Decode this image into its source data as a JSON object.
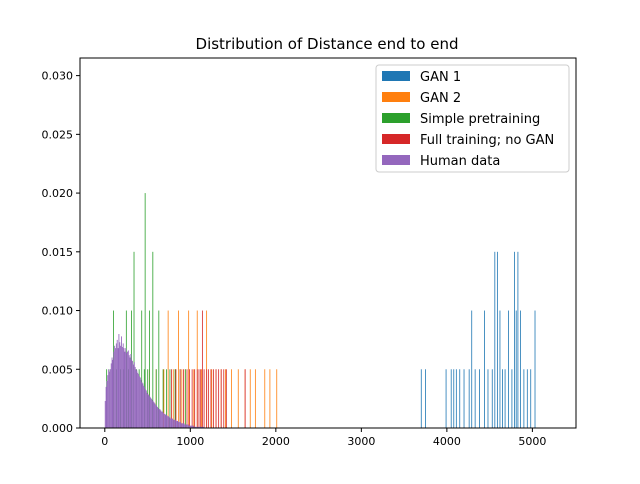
{
  "chart_data": {
    "type": "histogram",
    "title": "Distribution of Distance end to end",
    "xlabel": "",
    "ylabel": "",
    "xlim": [
      -290,
      5510
    ],
    "ylim": [
      0,
      0.0315
    ],
    "x_ticks": [
      0,
      1000,
      2000,
      3000,
      4000,
      5000
    ],
    "x_tick_labels": [
      "0",
      "1000",
      "2000",
      "3000",
      "4000",
      "5000"
    ],
    "y_ticks": [
      0,
      0.005,
      0.01,
      0.015,
      0.02,
      0.025,
      0.03
    ],
    "y_tick_labels": [
      "0.000",
      "0.005",
      "0.010",
      "0.015",
      "0.020",
      "0.025",
      "0.030"
    ],
    "grid": false,
    "legend_position": "top-right",
    "series": [
      {
        "name": "GAN 1",
        "color": "#1f77b4",
        "bin_width": 8,
        "bins": [
          [
            3700,
            0.005
          ],
          [
            3750,
            0.005
          ],
          [
            3990,
            0.005
          ],
          [
            4050,
            0.005
          ],
          [
            4080,
            0.005
          ],
          [
            4110,
            0.005
          ],
          [
            4150,
            0.005
          ],
          [
            4200,
            0.005
          ],
          [
            4260,
            0.005
          ],
          [
            4290,
            0.01
          ],
          [
            4330,
            0.005
          ],
          [
            4380,
            0.005
          ],
          [
            4440,
            0.01
          ],
          [
            4480,
            0.005
          ],
          [
            4530,
            0.005
          ],
          [
            4560,
            0.015
          ],
          [
            4590,
            0.015
          ],
          [
            4620,
            0.01
          ],
          [
            4650,
            0.005
          ],
          [
            4680,
            0.005
          ],
          [
            4720,
            0.01
          ],
          [
            4760,
            0.005
          ],
          [
            4790,
            0.015
          ],
          [
            4810,
            0.01
          ],
          [
            4830,
            0.015
          ],
          [
            4860,
            0.01
          ],
          [
            4900,
            0.005
          ],
          [
            4940,
            0.005
          ],
          [
            4980,
            0.005
          ],
          [
            5030,
            0.01
          ]
        ]
      },
      {
        "name": "GAN 2",
        "color": "#ff7f0e",
        "bin_width": 8,
        "bins": [
          [
            520,
            0.005
          ],
          [
            600,
            0.005
          ],
          [
            690,
            0.005
          ],
          [
            740,
            0.01
          ],
          [
            800,
            0.005
          ],
          [
            830,
            0.005
          ],
          [
            860,
            0.01
          ],
          [
            900,
            0.005
          ],
          [
            940,
            0.005
          ],
          [
            980,
            0.01
          ],
          [
            1040,
            0.005
          ],
          [
            1080,
            0.01
          ],
          [
            1130,
            0.005
          ],
          [
            1190,
            0.01
          ],
          [
            1250,
            0.005
          ],
          [
            1300,
            0.005
          ],
          [
            1360,
            0.005
          ],
          [
            1410,
            0.005
          ],
          [
            1480,
            0.005
          ],
          [
            1560,
            0.005
          ],
          [
            1640,
            0.005
          ],
          [
            1700,
            0.005
          ],
          [
            1760,
            0.005
          ],
          [
            1870,
            0.005
          ],
          [
            1930,
            0.005
          ],
          [
            2010,
            0.005
          ]
        ]
      },
      {
        "name": "Simple pretraining",
        "color": "#2ca02c",
        "bin_width": 6,
        "bins": [
          [
            20,
            0.005
          ],
          [
            60,
            0.005
          ],
          [
            100,
            0.01
          ],
          [
            140,
            0.005
          ],
          [
            180,
            0.005
          ],
          [
            220,
            0.005
          ],
          [
            250,
            0.01
          ],
          [
            280,
            0.005
          ],
          [
            310,
            0.01
          ],
          [
            340,
            0.015
          ],
          [
            370,
            0.005
          ],
          [
            400,
            0.005
          ],
          [
            430,
            0.01
          ],
          [
            460,
            0.005
          ],
          [
            470,
            0.02
          ],
          [
            500,
            0.005
          ],
          [
            520,
            0.01
          ],
          [
            560,
            0.015
          ],
          [
            600,
            0.005
          ],
          [
            630,
            0.01
          ],
          [
            680,
            0.005
          ],
          [
            720,
            0.005
          ],
          [
            760,
            0.005
          ],
          [
            820,
            0.005
          ],
          [
            880,
            0.005
          ],
          [
            940,
            0.005
          ]
        ]
      },
      {
        "name": "Full training; no GAN",
        "color": "#d62728",
        "bin_width": 7,
        "bins": [
          [
            780,
            0.005
          ],
          [
            830,
            0.005
          ],
          [
            880,
            0.005
          ],
          [
            920,
            0.005
          ],
          [
            960,
            0.005
          ],
          [
            990,
            0.005
          ],
          [
            1020,
            0.005
          ],
          [
            1050,
            0.005
          ],
          [
            1080,
            0.005
          ],
          [
            1100,
            0.005
          ],
          [
            1120,
            0.005
          ],
          [
            1140,
            0.01
          ],
          [
            1160,
            0.005
          ],
          [
            1190,
            0.005
          ],
          [
            1210,
            0.005
          ],
          [
            1240,
            0.005
          ],
          [
            1270,
            0.005
          ],
          [
            1300,
            0.005
          ],
          [
            1330,
            0.005
          ],
          [
            1360,
            0.005
          ],
          [
            1390,
            0.005
          ],
          [
            1420,
            0.005
          ],
          [
            1640,
            0.005
          ]
        ]
      },
      {
        "name": "Human data",
        "color": "#9467bd",
        "bin_width": 10,
        "bins": [
          [
            5,
            0.0023
          ],
          [
            15,
            0.0035
          ],
          [
            25,
            0.004
          ],
          [
            35,
            0.0045
          ],
          [
            45,
            0.005
          ],
          [
            55,
            0.0048
          ],
          [
            65,
            0.005
          ],
          [
            75,
            0.0055
          ],
          [
            85,
            0.006
          ],
          [
            95,
            0.0058
          ],
          [
            105,
            0.0065
          ],
          [
            115,
            0.007
          ],
          [
            125,
            0.0068
          ],
          [
            135,
            0.0072
          ],
          [
            145,
            0.0075
          ],
          [
            155,
            0.0068
          ],
          [
            165,
            0.008
          ],
          [
            175,
            0.0073
          ],
          [
            185,
            0.007
          ],
          [
            195,
            0.0078
          ],
          [
            205,
            0.0069
          ],
          [
            215,
            0.0072
          ],
          [
            225,
            0.0068
          ],
          [
            235,
            0.0065
          ],
          [
            245,
            0.0068
          ],
          [
            255,
            0.0064
          ],
          [
            265,
            0.0065
          ],
          [
            275,
            0.0066
          ],
          [
            285,
            0.0062
          ],
          [
            295,
            0.006
          ],
          [
            305,
            0.0063
          ],
          [
            315,
            0.0058
          ],
          [
            325,
            0.0057
          ],
          [
            335,
            0.0054
          ],
          [
            345,
            0.0056
          ],
          [
            355,
            0.0052
          ],
          [
            365,
            0.005
          ],
          [
            375,
            0.0049
          ],
          [
            385,
            0.0047
          ],
          [
            395,
            0.0046
          ],
          [
            405,
            0.0044
          ],
          [
            415,
            0.0043
          ],
          [
            425,
            0.0041
          ],
          [
            435,
            0.0039
          ],
          [
            445,
            0.0038
          ],
          [
            455,
            0.0036
          ],
          [
            465,
            0.0035
          ],
          [
            475,
            0.0033
          ],
          [
            485,
            0.0032
          ],
          [
            495,
            0.003
          ],
          [
            505,
            0.0029
          ],
          [
            515,
            0.0028
          ],
          [
            525,
            0.0027
          ],
          [
            535,
            0.0026
          ],
          [
            545,
            0.0025
          ],
          [
            555,
            0.0024
          ],
          [
            565,
            0.0023
          ],
          [
            575,
            0.0022
          ],
          [
            585,
            0.0021
          ],
          [
            595,
            0.002
          ],
          [
            605,
            0.0019
          ],
          [
            615,
            0.0018
          ],
          [
            625,
            0.0017
          ],
          [
            635,
            0.0016
          ],
          [
            645,
            0.0016
          ],
          [
            655,
            0.0015
          ],
          [
            665,
            0.0014
          ],
          [
            675,
            0.0014
          ],
          [
            685,
            0.0013
          ],
          [
            695,
            0.0012
          ],
          [
            705,
            0.0012
          ],
          [
            715,
            0.0011
          ],
          [
            725,
            0.0011
          ],
          [
            735,
            0.001
          ],
          [
            745,
            0.001
          ],
          [
            755,
            0.0009
          ],
          [
            765,
            0.0009
          ],
          [
            775,
            0.0008
          ],
          [
            785,
            0.0008
          ],
          [
            795,
            0.0008
          ],
          [
            805,
            0.0007
          ],
          [
            815,
            0.0007
          ],
          [
            825,
            0.0007
          ],
          [
            835,
            0.0006
          ],
          [
            845,
            0.0006
          ],
          [
            855,
            0.0006
          ],
          [
            865,
            0.0005
          ],
          [
            875,
            0.0005
          ],
          [
            885,
            0.0005
          ],
          [
            895,
            0.0004
          ],
          [
            905,
            0.0004
          ],
          [
            915,
            0.0004
          ],
          [
            925,
            0.0004
          ],
          [
            935,
            0.0003
          ],
          [
            945,
            0.0003
          ],
          [
            955,
            0.0003
          ],
          [
            965,
            0.0003
          ],
          [
            975,
            0.0003
          ],
          [
            985,
            0.0002
          ],
          [
            995,
            0.0002
          ],
          [
            1005,
            0.0002
          ],
          [
            1015,
            0.0002
          ],
          [
            1025,
            0.0002
          ],
          [
            1035,
            0.0002
          ],
          [
            1045,
            0.0001
          ],
          [
            1055,
            0.0001
          ],
          [
            1065,
            0.0001
          ],
          [
            1075,
            0.0001
          ],
          [
            1085,
            0.0001
          ],
          [
            1095,
            0.0001
          ],
          [
            1105,
            0.0001
          ],
          [
            1115,
            0.0001
          ],
          [
            1125,
            0.0001
          ],
          [
            1135,
            0.0001
          ],
          [
            1145,
            0.0001
          ],
          [
            1155,
            0.0001
          ]
        ]
      }
    ]
  }
}
